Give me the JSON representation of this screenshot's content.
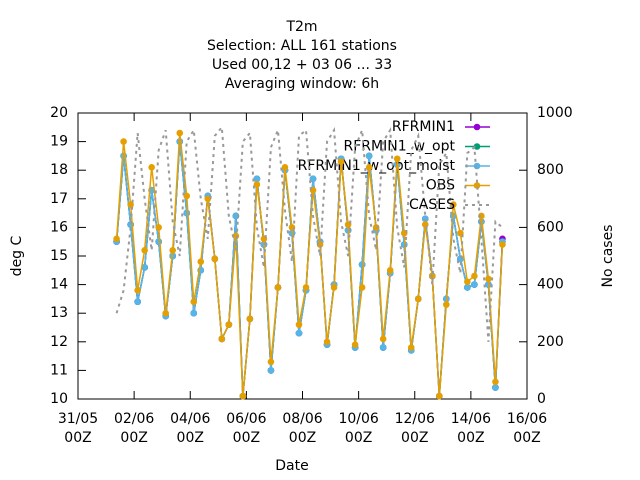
{
  "chart_data": {
    "type": "line",
    "title": [
      "T2m",
      "Selection: ALL    161 stations",
      "Used  00,12 + 03 06 ... 33",
      "Averaging window:  6h"
    ],
    "xlabel": "Date",
    "ylabel": "deg C",
    "y2label": "No cases",
    "x": [
      "01/06 09Z",
      "01/06 15Z",
      "01/06 21Z",
      "02/06 03Z",
      "02/06 09Z",
      "02/06 15Z",
      "02/06 21Z",
      "03/06 03Z",
      "03/06 09Z",
      "03/06 15Z",
      "03/06 21Z",
      "04/06 03Z",
      "04/06 09Z",
      "04/06 15Z",
      "04/06 21Z",
      "05/06 03Z",
      "05/06 09Z",
      "05/06 15Z",
      "05/06 21Z",
      "06/06 03Z",
      "06/06 09Z",
      "06/06 15Z",
      "06/06 21Z",
      "07/06 03Z",
      "07/06 09Z",
      "07/06 15Z",
      "07/06 21Z",
      "08/06 03Z",
      "08/06 09Z",
      "08/06 15Z",
      "08/06 21Z",
      "09/06 03Z",
      "09/06 09Z",
      "09/06 15Z",
      "09/06 21Z",
      "10/06 03Z",
      "10/06 09Z",
      "10/06 15Z",
      "10/06 21Z",
      "11/06 03Z",
      "11/06 09Z",
      "11/06 15Z",
      "11/06 21Z",
      "12/06 03Z",
      "12/06 09Z",
      "12/06 15Z",
      "12/06 21Z",
      "13/06 03Z",
      "13/06 09Z",
      "13/06 15Z",
      "13/06 21Z",
      "14/06 03Z",
      "14/06 09Z",
      "14/06 15Z",
      "14/06 21Z",
      "15/06 03Z"
    ],
    "series": [
      {
        "name": "RFRMIN1",
        "color": "#9400d3",
        "values": [
          15.5,
          18.5,
          16.1,
          13.4,
          14.6,
          17.3,
          15.5,
          12.9,
          15.0,
          19.0,
          16.5,
          13.0,
          14.5,
          17.1,
          14.9,
          12.1,
          12.6,
          16.4,
          10.1,
          12.8,
          17.7,
          15.4,
          11.0,
          13.9,
          18.0,
          15.8,
          12.3,
          13.8,
          17.7,
          15.5,
          11.9,
          14.0,
          18.4,
          15.9,
          11.8,
          14.7,
          18.5,
          15.9,
          11.8,
          14.4,
          18.2,
          15.4,
          11.7,
          13.5,
          16.3,
          14.3,
          10.1,
          13.5,
          16.4,
          14.9,
          13.9,
          14.0,
          16.2,
          14.0,
          10.4,
          15.6
        ]
      },
      {
        "name": "RFRMIN1_w_opt",
        "color": "#009e73",
        "values": [
          15.5,
          18.5,
          16.1,
          13.4,
          14.6,
          17.3,
          15.5,
          12.9,
          15.0,
          19.0,
          16.5,
          13.0,
          14.5,
          17.1,
          14.9,
          12.1,
          12.6,
          16.4,
          10.1,
          12.8,
          17.7,
          15.4,
          11.0,
          13.9,
          18.0,
          15.8,
          12.3,
          13.8,
          17.7,
          15.5,
          11.9,
          14.0,
          18.4,
          15.9,
          11.8,
          14.7,
          18.5,
          15.9,
          11.8,
          14.4,
          18.2,
          15.4,
          11.7,
          13.5,
          16.3,
          14.3,
          10.1,
          13.5,
          16.4,
          14.9,
          13.9,
          14.0,
          16.2,
          14.0,
          10.4,
          15.5
        ]
      },
      {
        "name": "RFRMIN1_w_opt_moist",
        "color": "#56b4e9",
        "values": [
          15.5,
          18.5,
          16.1,
          13.4,
          14.6,
          17.3,
          15.5,
          12.9,
          15.0,
          19.0,
          16.5,
          13.0,
          14.5,
          17.1,
          14.9,
          12.1,
          12.6,
          16.4,
          10.1,
          12.8,
          17.7,
          15.4,
          11.0,
          13.9,
          18.0,
          15.8,
          12.3,
          13.8,
          17.7,
          15.5,
          11.9,
          14.0,
          18.4,
          15.9,
          11.8,
          14.7,
          18.5,
          15.9,
          11.8,
          14.4,
          18.2,
          15.4,
          11.7,
          13.5,
          16.3,
          14.3,
          10.1,
          13.5,
          16.4,
          14.9,
          13.9,
          14.0,
          16.2,
          14.0,
          10.4,
          15.5
        ]
      },
      {
        "name": "OBS",
        "color": "#e69f00",
        "values": [
          15.6,
          19.0,
          16.8,
          13.8,
          15.2,
          18.1,
          16.0,
          13.0,
          15.2,
          19.3,
          17.1,
          13.4,
          14.8,
          17.0,
          14.9,
          12.1,
          12.6,
          15.7,
          10.1,
          12.8,
          17.5,
          15.6,
          11.3,
          13.9,
          18.1,
          16.0,
          12.6,
          13.9,
          17.3,
          15.4,
          12.0,
          13.9,
          18.3,
          16.1,
          11.9,
          13.9,
          18.1,
          16.0,
          12.1,
          14.5,
          18.4,
          15.8,
          11.8,
          13.5,
          16.1,
          14.3,
          10.1,
          13.3,
          16.8,
          15.8,
          14.1,
          14.3,
          16.4,
          14.2,
          10.6,
          15.4
        ]
      },
      {
        "name": "CASES",
        "color": "#999999",
        "axis": "y2",
        "values": [
          300,
          380,
          600,
          930,
          700,
          520,
          870,
          940,
          620,
          500,
          900,
          940,
          700,
          560,
          920,
          950,
          640,
          520,
          900,
          930,
          600,
          460,
          880,
          940,
          660,
          480,
          920,
          940,
          640,
          500,
          900,
          940,
          620,
          500,
          880,
          940,
          640,
          520,
          900,
          940,
          600,
          460,
          870,
          920,
          640,
          400,
          820,
          860,
          560,
          440,
          860,
          880,
          560,
          200,
          620,
          600
        ]
      }
    ],
    "xlim": [
      "31/05 00Z",
      "16/06 00Z"
    ],
    "xticks": [
      "31/05 00Z",
      "02/06 00Z",
      "04/06 00Z",
      "06/06 00Z",
      "08/06 00Z",
      "10/06 00Z",
      "12/06 00Z",
      "14/06 00Z",
      "16/06 00Z"
    ],
    "ylim": [
      10,
      20
    ],
    "yticks": [
      10,
      11,
      12,
      13,
      14,
      15,
      16,
      17,
      18,
      19,
      20
    ],
    "y2lim": [
      0,
      1000
    ],
    "y2ticks": [
      0,
      200,
      400,
      600,
      800,
      1000
    ],
    "legend": "top-right"
  }
}
